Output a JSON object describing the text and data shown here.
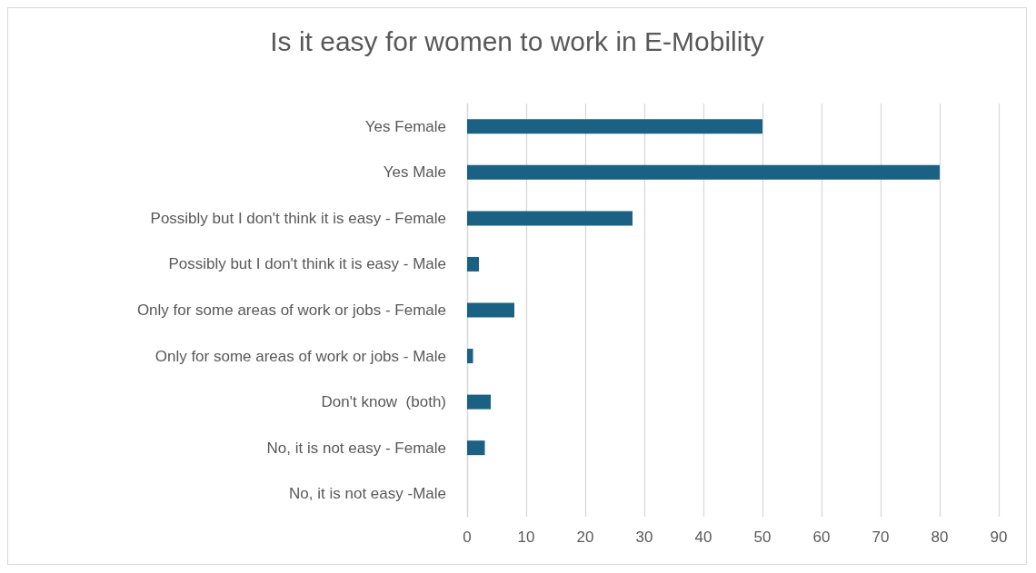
{
  "chart_data": {
    "type": "bar",
    "orientation": "horizontal",
    "title": "Is it easy for women to work in E-Mobility",
    "categories": [
      "Yes Female",
      "Yes Male",
      "Possibly but I don't think it is easy - Female",
      "Possibly but I don't think it is easy - Male",
      "Only for some areas of work or jobs - Female",
      "Only for some areas of work or jobs - Male",
      "Don't know  (both)",
      "No, it is not easy - Female",
      "No, it is not easy -Male"
    ],
    "values": [
      50,
      80,
      28,
      2,
      8,
      1,
      4,
      3,
      0
    ],
    "color": "#1a6184",
    "xlim": [
      0,
      90
    ],
    "xticks": [
      0,
      10,
      20,
      30,
      40,
      50,
      60,
      70,
      80,
      90
    ],
    "grid": "x"
  }
}
